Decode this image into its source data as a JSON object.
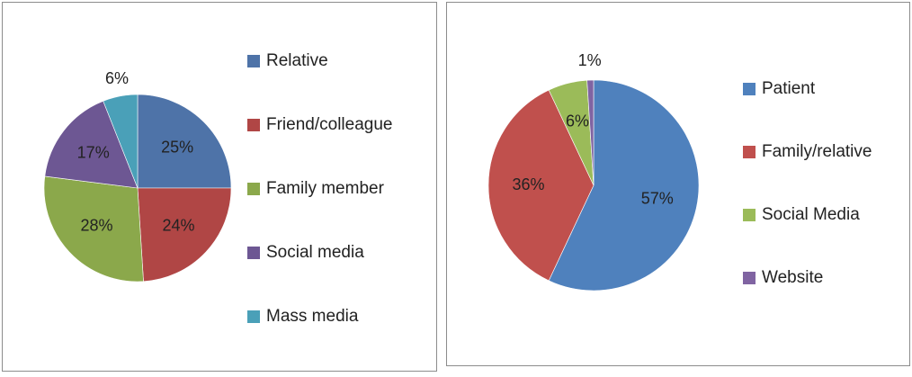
{
  "chart_data": [
    {
      "type": "pie",
      "categories": [
        "Relative",
        "Friend/colleague",
        "Family member",
        "Social media",
        "Mass media"
      ],
      "values": [
        25,
        24,
        28,
        17,
        6
      ],
      "labels": [
        "25%",
        "24%",
        "28%",
        "17%",
        "6%"
      ],
      "colors": [
        "#4e73a8",
        "#b04645",
        "#8ba84b",
        "#6d5793",
        "#4aa0b8"
      ],
      "legend": "right"
    },
    {
      "type": "pie",
      "categories": [
        "Patient",
        "Family/relative",
        "Social Media",
        "Website"
      ],
      "values": [
        57,
        36,
        6,
        1
      ],
      "labels": [
        "57%",
        "36%",
        "6%",
        "1%"
      ],
      "colors": [
        "#4f81bd",
        "#c0504d",
        "#9bbb59",
        "#8064a2"
      ],
      "legend": "right"
    }
  ]
}
